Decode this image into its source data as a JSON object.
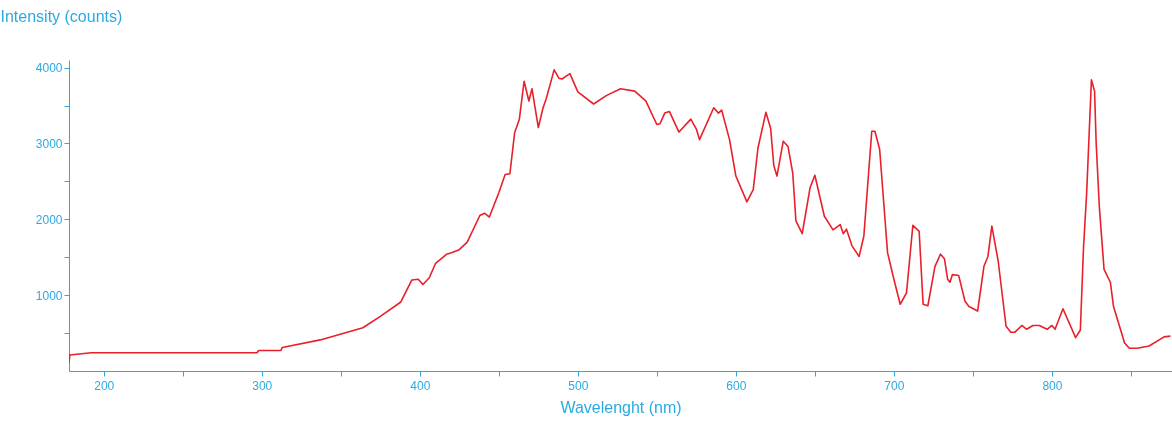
{
  "chart_data": {
    "type": "line",
    "xlabel": "Wavelenght (nm)",
    "ylabel": "Intensity (counts)",
    "x": [
      178,
      178.5,
      192,
      297,
      298,
      312,
      313,
      337,
      364,
      375,
      388,
      395,
      399,
      402,
      406,
      410,
      417,
      420,
      425,
      430,
      438,
      441,
      444,
      450,
      454,
      457,
      460,
      463,
      466,
      469,
      471,
      475,
      478,
      480,
      485,
      488,
      490,
      495,
      500,
      510,
      518,
      527,
      536,
      543,
      550,
      552,
      555,
      558,
      564,
      571.5,
      575,
      577,
      586,
      589,
      591,
      596,
      600,
      607,
      611,
      614,
      619,
      622,
      624,
      626,
      630,
      633,
      636,
      638,
      642,
      647,
      650,
      656,
      661.5,
      666,
      668,
      670,
      673.5,
      678,
      681,
      686,
      688,
      691,
      696,
      700,
      704,
      708,
      712,
      716,
      718.5,
      721.5,
      726,
      729.5,
      732,
      734,
      735.5,
      737,
      741,
      745,
      747.5,
      753,
      757,
      759.5,
      762,
      766,
      771,
      774,
      776.5,
      781,
      784,
      788,
      792,
      797,
      800,
      802,
      807,
      815,
      818,
      820,
      822,
      824,
      825,
      827,
      828,
      830,
      833,
      837,
      839,
      846,
      849,
      854,
      861.5,
      871,
      875
    ],
    "series": [
      {
        "color": "#e8202a",
        "values": [
          110,
          210,
          240,
          240,
          270,
          270,
          310,
          410,
          570,
          720,
          910,
          1200,
          1210,
          1140,
          1230,
          1420,
          1540,
          1560,
          1600,
          1700,
          2050,
          2080,
          2030,
          2350,
          2590,
          2600,
          3140,
          3320,
          3820,
          3560,
          3720,
          3210,
          3470,
          3590,
          3970,
          3860,
          3850,
          3920,
          3680,
          3520,
          3630,
          3720,
          3690,
          3560,
          3250,
          3260,
          3400,
          3420,
          3150,
          3320,
          3190,
          3050,
          3470,
          3400,
          3440,
          3050,
          2570,
          2230,
          2390,
          2940,
          3410,
          3200,
          2710,
          2570,
          3030,
          2960,
          2610,
          1980,
          1810,
          2420,
          2580,
          2040,
          1860,
          1930,
          1810,
          1870,
          1650,
          1510,
          1780,
          3160,
          3160,
          2920,
          1560,
          1210,
          880,
          1030,
          1920,
          1840,
          880,
          860,
          1380,
          1540,
          1480,
          1210,
          1170,
          1270,
          1260,
          920,
          850,
          790,
          1380,
          1510,
          1910,
          1450,
          590,
          510,
          510,
          600,
          550,
          600,
          600,
          550,
          600,
          550,
          820,
          440,
          540,
          1620,
          2350,
          3340,
          3840,
          3690,
          3010,
          2170,
          1340,
          1170,
          850,
          370,
          300,
          300,
          330,
          450,
          460
        ]
      }
    ],
    "xlim": [
      178,
      876
    ],
    "ylim": [
      0,
      4100
    ],
    "xticks": [
      200,
      {
        "value": 250,
        "label": null
      },
      300,
      {
        "value": 350,
        "label": null
      },
      400,
      {
        "value": 450,
        "label": null
      },
      500,
      {
        "value": 550,
        "label": null
      },
      600,
      {
        "value": 650,
        "label": null
      },
      700,
      {
        "value": 750,
        "label": null
      },
      800,
      {
        "value": 850,
        "label": null
      }
    ],
    "yticks": [
      {
        "value": 500,
        "label": null
      },
      1000,
      {
        "value": 1500,
        "label": null
      },
      2000,
      {
        "value": 2500,
        "label": null
      },
      3000,
      {
        "value": 3500,
        "label": null
      },
      4000
    ],
    "line_style": "solid",
    "marker": "none",
    "grid": false
  }
}
